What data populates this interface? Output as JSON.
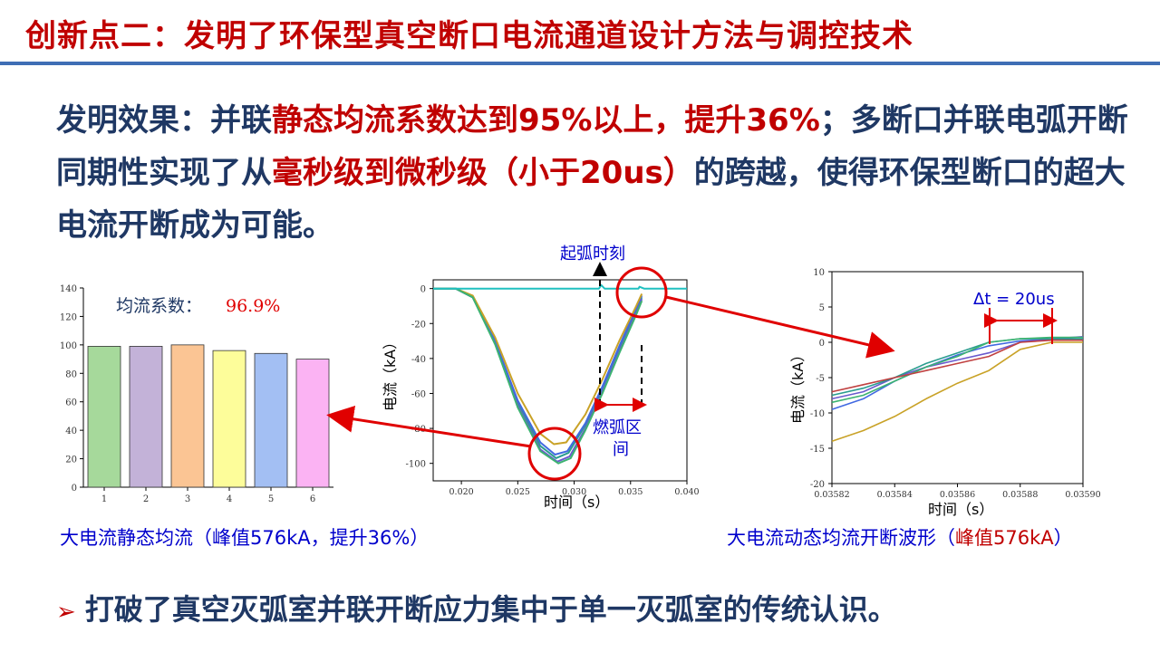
{
  "title": "创新点二：发明了环保型真空断口电流通道设计方法与调控技术",
  "effect": {
    "seg1": "发明效果：并联",
    "seg2": "静态均流系数达到95%以上，提升36%",
    "seg3": "；多断口并联电弧开断同期性实现了从",
    "seg4": "毫秒级到微秒级（小于20us）",
    "seg5": "的跨越，使得环保型断口的超大电流开断成为可能。"
  },
  "chart_left": {
    "annotation_label": "均流系数：",
    "annotation_value": "96.9%",
    "caption": "大电流静态均流（峰值576kA，提升36%）"
  },
  "chart_middle": {
    "ylabel": "电流（kA）",
    "xlabel": "时间（s）",
    "arc_start_label": "起弧时刻",
    "arc_interval_label_1": "燃弧区",
    "arc_interval_label_2": "间"
  },
  "chart_right": {
    "ylabel": "电流（kA）",
    "xlabel": "时间（s）",
    "delta_label": "Δt = 20us",
    "caption_main": "大电流动态均流开断波形（",
    "caption_red": "峰值576kA",
    "caption_end": "）"
  },
  "bottom_line": "打破了真空灭弧室并联开断应力集中于单一灭弧室的传统认识。",
  "colors": {
    "title": "#c00000",
    "text": "#1f3864",
    "accent": "#e00000",
    "rule": "#3f6eb5"
  },
  "chart_data": [
    {
      "type": "bar",
      "categories": [
        "1",
        "2",
        "3",
        "4",
        "5",
        "6"
      ],
      "values": [
        99,
        99,
        100,
        96,
        94,
        90
      ],
      "colors": [
        "#a6d99b",
        "#c3b2d8",
        "#fbc594",
        "#fdfd9a",
        "#a3bff3",
        "#fbb3f3"
      ],
      "ylim": [
        0,
        140
      ],
      "yticks": [
        0,
        20,
        40,
        60,
        80,
        100,
        120,
        140
      ]
    },
    {
      "type": "line",
      "xlabel": "时间（s）",
      "ylabel": "电流（kA）",
      "xlim": [
        0.0175,
        0.04
      ],
      "ylim": [
        -110,
        5
      ],
      "xticks": [
        0.02,
        0.025,
        0.03,
        0.035,
        0.04
      ],
      "xtick_labels": [
        "0.020",
        "0.025",
        "0.030",
        "0.035",
        "0.040"
      ],
      "yticks": [
        -100,
        -80,
        -60,
        -40,
        -20,
        0
      ],
      "series": [
        {
          "color": "#2a9d8f",
          "x": [
            0.0175,
            0.0195,
            0.021,
            0.023,
            0.025,
            0.027,
            0.0284,
            0.0295,
            0.031,
            0.0325,
            0.034,
            0.0355,
            0.036
          ],
          "y": [
            0,
            0,
            -5,
            -30,
            -65,
            -90,
            -97,
            -94,
            -78,
            -57,
            -34,
            -12,
            -5
          ]
        },
        {
          "color": "#6a5acd",
          "x": [
            0.0175,
            0.0195,
            0.021,
            0.023,
            0.025,
            0.027,
            0.0285,
            0.0296,
            0.031,
            0.0325,
            0.034,
            0.0355,
            0.036
          ],
          "y": [
            0,
            0,
            -5,
            -31,
            -67,
            -92,
            -99,
            -96,
            -80,
            -59,
            -36,
            -14,
            -6
          ]
        },
        {
          "color": "#4169e1",
          "x": [
            0.0175,
            0.0195,
            0.021,
            0.023,
            0.025,
            0.027,
            0.0283,
            0.0294,
            0.031,
            0.0325,
            0.034,
            0.0355,
            0.036
          ],
          "y": [
            0,
            0,
            -5,
            -30,
            -64,
            -88,
            -95,
            -93,
            -77,
            -56,
            -33,
            -11,
            -4
          ]
        },
        {
          "color": "#c9a227",
          "x": [
            0.0175,
            0.0195,
            0.021,
            0.023,
            0.025,
            0.027,
            0.0282,
            0.0293,
            0.031,
            0.0325,
            0.034,
            0.0355,
            0.036
          ],
          "y": [
            0,
            0,
            -4,
            -28,
            -60,
            -83,
            -89,
            -88,
            -72,
            -52,
            -30,
            -10,
            -3
          ]
        },
        {
          "color": "#3cb371",
          "x": [
            0.0175,
            0.0195,
            0.021,
            0.023,
            0.025,
            0.027,
            0.0286,
            0.0297,
            0.031,
            0.0325,
            0.034,
            0.0355,
            0.036
          ],
          "y": [
            0,
            0,
            -5,
            -32,
            -68,
            -93,
            -100,
            -97,
            -81,
            -60,
            -37,
            -15,
            -7
          ]
        },
        {
          "color": "#20c0c0",
          "x": [
            0.0175,
            0.0195,
            0.0322,
            0.0324,
            0.0327,
            0.035,
            0.0357,
            0.0358,
            0.0362,
            0.04
          ],
          "y": [
            0,
            0,
            0,
            2,
            0,
            0,
            0,
            1,
            0,
            0
          ]
        }
      ]
    },
    {
      "type": "line",
      "xlabel": "时间（s）",
      "ylabel": "电流（kA）",
      "xlim": [
        0.03582,
        0.0359
      ],
      "ylim": [
        -20,
        10
      ],
      "xticks": [
        0.03582,
        0.03584,
        0.03586,
        0.03588,
        0.0359
      ],
      "xtick_labels": [
        "0.03582",
        "0.03584",
        "0.03586",
        "0.03588",
        "0.03590"
      ],
      "yticks": [
        -20,
        -15,
        -10,
        -5,
        0,
        5,
        10
      ],
      "series": [
        {
          "color": "#c9a227",
          "x": [
            0.03582,
            0.03583,
            0.03584,
            0.03585,
            0.03586,
            0.03587,
            0.03588,
            0.03589,
            0.0359
          ],
          "y": [
            -14,
            -12.5,
            -10.5,
            -8,
            -5.8,
            -4,
            -1,
            0,
            0
          ]
        },
        {
          "color": "#4169e1",
          "x": [
            0.03582,
            0.03583,
            0.03584,
            0.03585,
            0.03586,
            0.03587,
            0.03588,
            0.03589,
            0.0359
          ],
          "y": [
            -9.5,
            -8,
            -5.5,
            -3.5,
            -1.8,
            -0.5,
            0.2,
            0.4,
            0.4
          ]
        },
        {
          "color": "#6a5acd",
          "x": [
            0.03582,
            0.03583,
            0.03584,
            0.03585,
            0.03586,
            0.03587,
            0.03588,
            0.03589,
            0.0359
          ],
          "y": [
            -8,
            -7,
            -5,
            -3.5,
            -2.5,
            -1.5,
            0,
            0.5,
            0.8
          ]
        },
        {
          "color": "#2a9d8f",
          "x": [
            0.03582,
            0.03583,
            0.03584,
            0.03585,
            0.03586,
            0.03587,
            0.03588,
            0.03589,
            0.0359
          ],
          "y": [
            -7.5,
            -6.5,
            -5,
            -3,
            -1.5,
            0,
            0.5,
            0.5,
            0.5
          ]
        },
        {
          "color": "#3cb371",
          "x": [
            0.03582,
            0.03583,
            0.03584,
            0.03585,
            0.03586,
            0.03587,
            0.03588,
            0.03589,
            0.0359
          ],
          "y": [
            -8.5,
            -7.5,
            -5.5,
            -3.5,
            -2,
            0,
            0.5,
            0.7,
            0.7
          ]
        },
        {
          "color": "#c04040",
          "x": [
            0.03582,
            0.03583,
            0.03584,
            0.03585,
            0.03586,
            0.03587,
            0.03588,
            0.03589,
            0.0359
          ],
          "y": [
            -7,
            -6,
            -5,
            -4,
            -3,
            -2,
            0,
            0.3,
            0.3
          ]
        }
      ]
    }
  ]
}
